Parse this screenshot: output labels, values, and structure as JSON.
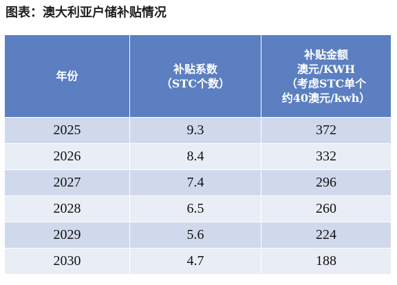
{
  "title": "图表：澳大利亚户储补贴情况",
  "table": {
    "headers": [
      {
        "lines": [
          "年份"
        ]
      },
      {
        "lines": [
          "补贴系数",
          "（STC个数）"
        ]
      },
      {
        "lines": [
          "补贴金额",
          "澳元/KWH",
          "（考虑STC单个",
          "约40澳元/kwh）"
        ]
      }
    ],
    "rows": [
      {
        "year": "2025",
        "coefficient": "9.3",
        "amount": "372"
      },
      {
        "year": "2026",
        "coefficient": "8.4",
        "amount": "332"
      },
      {
        "year": "2027",
        "coefficient": "7.4",
        "amount": "296"
      },
      {
        "year": "2028",
        "coefficient": "6.5",
        "amount": "260"
      },
      {
        "year": "2029",
        "coefficient": "5.6",
        "amount": "224"
      },
      {
        "year": "2030",
        "coefficient": "4.7",
        "amount": "188"
      }
    ]
  },
  "colors": {
    "header_bg": "#5b7fc1",
    "row_odd_bg": "#d0d9ec",
    "row_even_bg": "#e9edf5"
  }
}
